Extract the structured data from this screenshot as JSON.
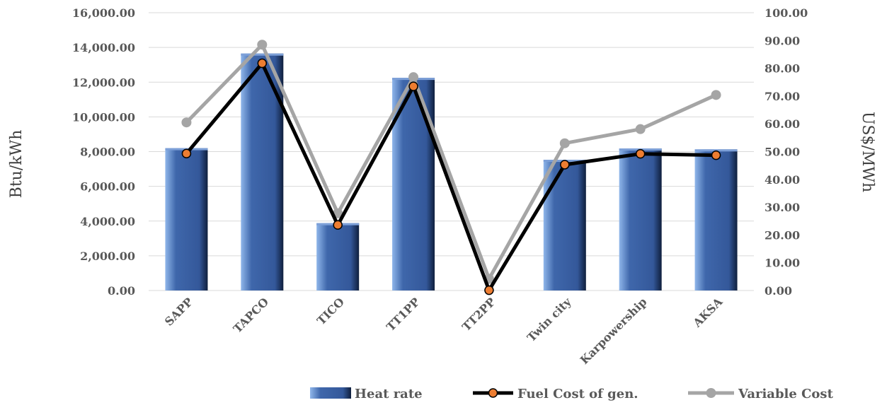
{
  "chart_data": {
    "type": "bar",
    "categories": [
      "SAPP",
      "TAPCO",
      "TICO",
      "TT1PP",
      "TT2PP",
      "Twin city",
      "Karpowership",
      "AKSA"
    ],
    "series": [
      {
        "name": "Heat rate",
        "kind": "bar",
        "axis": "left",
        "color": "#4472c4",
        "values": [
          8200,
          13650,
          3880,
          12250,
          0,
          7530,
          8180,
          8130
        ]
      },
      {
        "name": "Fuel Cost of gen.",
        "kind": "line",
        "axis": "right",
        "color": "#000000",
        "marker_color": "#ed7d31",
        "values": [
          49.3,
          81.8,
          23.6,
          73.5,
          0.1,
          45.3,
          49.2,
          48.7
        ]
      },
      {
        "name": "Variable Cost",
        "kind": "line",
        "axis": "right",
        "color": "#a5a5a5",
        "marker_color": "#a5a5a5",
        "values": [
          60.5,
          88.5,
          27.8,
          76.8,
          4.2,
          53.0,
          58.1,
          70.4
        ]
      }
    ],
    "ylabel": "Btu/kWh",
    "y2label": "US$/MWh",
    "ylim": [
      0,
      16000
    ],
    "y2lim": [
      0,
      100
    ],
    "yticks": [
      "0.00",
      "2,000.00",
      "4,000.00",
      "6,000.00",
      "8,000.00",
      "10,000.00",
      "12,000.00",
      "14,000.00",
      "16,000.00"
    ],
    "y2ticks": [
      "0.00",
      "10.00",
      "20.00",
      "30.00",
      "40.00",
      "50.00",
      "60.00",
      "70.00",
      "80.00",
      "90.00",
      "100.00"
    ],
    "grid": true,
    "legend_position": "bottom-right"
  }
}
